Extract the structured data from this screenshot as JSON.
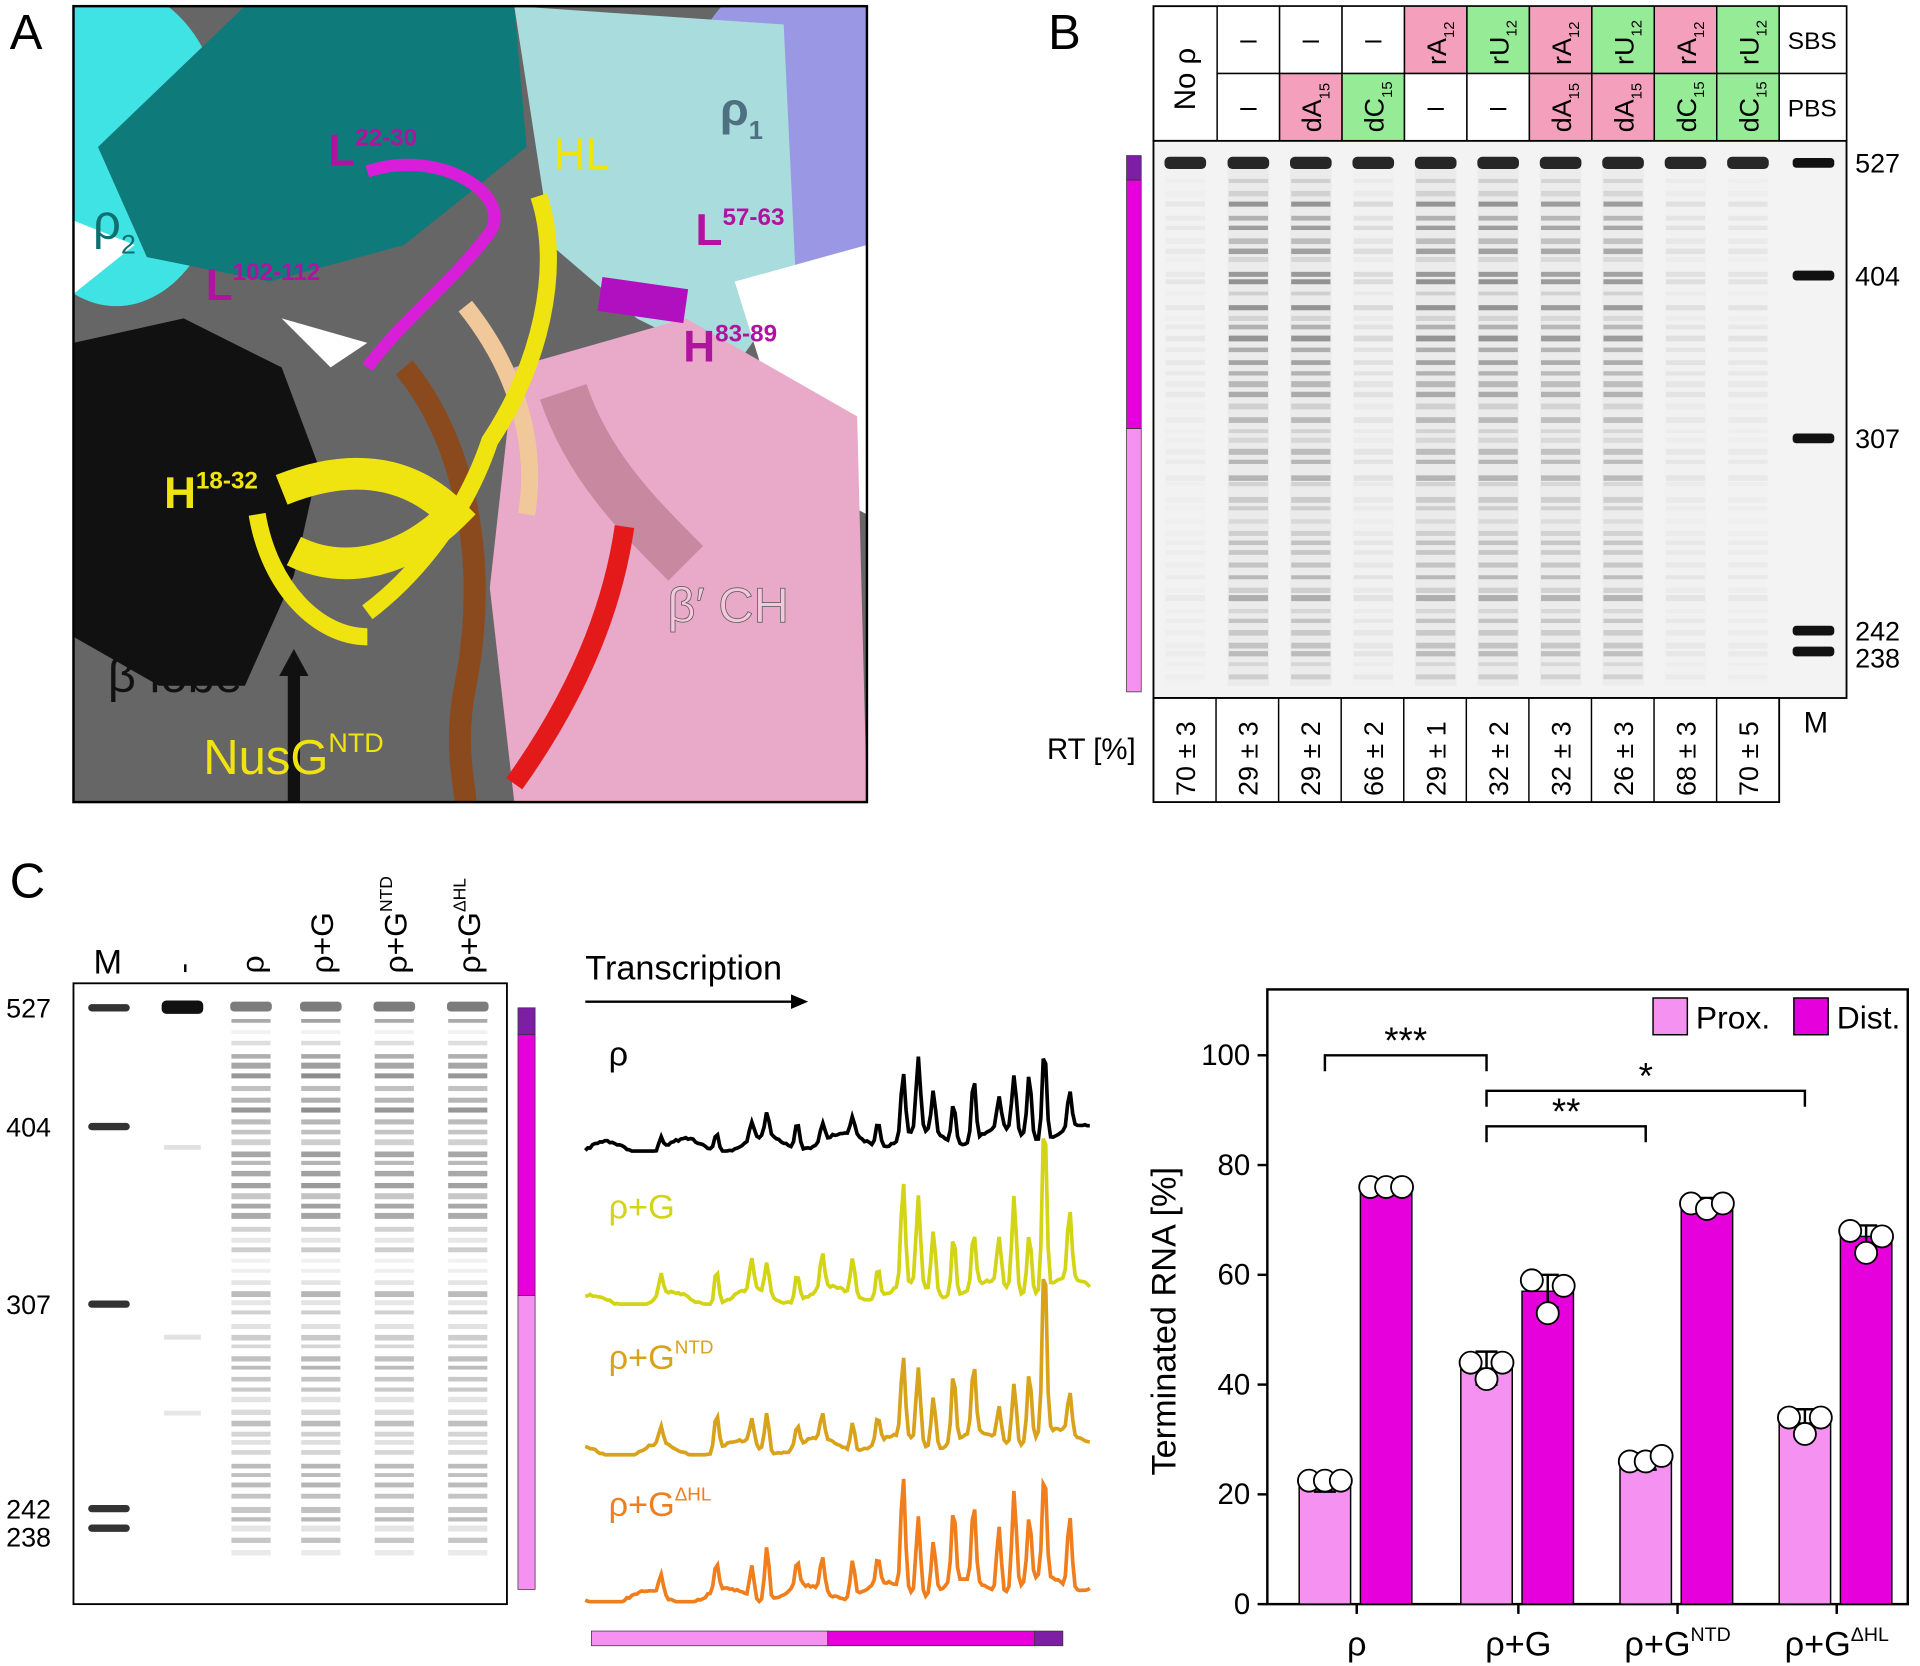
{
  "panel_labels": [
    "A",
    "B",
    "C"
  ],
  "panel_a": {
    "labels": [
      {
        "text": "ρ",
        "sub": "2"
      },
      {
        "text": "L",
        "sup": "22-30"
      },
      {
        "text": "HL"
      },
      {
        "text": "ρ",
        "sub": "1"
      },
      {
        "text": "L",
        "sup": "57-63"
      },
      {
        "text": "L",
        "sup": "102-112"
      },
      {
        "text": "H",
        "sup": "83-89"
      },
      {
        "text": "H",
        "sup": "18-32"
      },
      {
        "text": "β′ CH"
      },
      {
        "text": "β lobe"
      },
      {
        "text": "NusG",
        "sup": "NTD"
      }
    ]
  },
  "panel_b": {
    "first_column": "No ρ",
    "sbs": [
      "–",
      "–",
      "–",
      {
        "text": "rA",
        "sub": "12"
      },
      {
        "text": "rU",
        "sub": "12"
      },
      {
        "text": "rA",
        "sub": "12"
      },
      {
        "text": "rU",
        "sub": "12"
      },
      {
        "text": "rA",
        "sub": "12"
      },
      {
        "text": "rU",
        "sub": "12"
      }
    ],
    "pbs": [
      "–",
      {
        "text": "dA",
        "sub": "15"
      },
      {
        "text": "dC",
        "sub": "15"
      },
      "–",
      "–",
      {
        "text": "dA",
        "sub": "15"
      },
      {
        "text": "dA",
        "sub": "15"
      },
      {
        "text": "dC",
        "sub": "15"
      },
      {
        "text": "dC",
        "sub": "15"
      }
    ],
    "row_labels": [
      "SBS",
      "PBS"
    ],
    "rt_label": "RT [%]",
    "rt": [
      "70 ± 3",
      "29 ± 3",
      "29 ± 2",
      "66 ± 2",
      "29 ± 1",
      "32 ± 2",
      "32 ± 3",
      "26 ± 3",
      "68 ± 3",
      "70 ± 5"
    ],
    "marker_lane": "M",
    "marker_sizes": [
      "527",
      "404",
      "307",
      "242",
      "238"
    ]
  },
  "panel_c": {
    "lanes": [
      {
        "text": "M"
      },
      {
        "text": "-"
      },
      {
        "text": "ρ"
      },
      {
        "text": "ρ+G"
      },
      {
        "text": "ρ+G",
        "sup": "NTD"
      },
      {
        "text": "ρ+G",
        "sup": "ΔHL"
      }
    ],
    "marker_sizes": [
      "527",
      "404",
      "307",
      "242",
      "238"
    ],
    "trace_title": "Transcription",
    "traces": [
      {
        "label": {
          "text": "ρ"
        },
        "color": "#000000"
      },
      {
        "label": {
          "text": "ρ+G"
        },
        "color": "#d2d414"
      },
      {
        "label": {
          "text": "ρ+G",
          "sup": "NTD"
        },
        "color": "#d8a21a"
      },
      {
        "label": {
          "text": "ρ+G",
          "sup": "ΔHL"
        },
        "color": "#f07e1c"
      }
    ]
  },
  "chart_data": {
    "type": "bar",
    "categories": [
      "ρ",
      "ρ+G",
      "ρ+G",
      "ρ+G"
    ],
    "category_superscripts": [
      null,
      null,
      "NTD",
      "ΔHL"
    ],
    "ylabel": "Terminated RNA [%]",
    "ylim": [
      0,
      112
    ],
    "yticks": [
      0,
      20,
      40,
      60,
      80,
      100
    ],
    "legend": "top-right",
    "series": [
      {
        "name": "Prox.",
        "color": "#f591f0",
        "values": [
          22,
          43,
          26,
          33
        ],
        "errors": [
          1.5,
          3,
          1.5,
          2.5
        ],
        "points": [
          [
            22.5,
            22.5,
            22.5
          ],
          [
            44,
            41,
            44
          ],
          [
            26,
            26,
            27
          ],
          [
            34,
            31,
            34
          ]
        ]
      },
      {
        "name": "Dist.",
        "color": "#e600dc",
        "values": [
          76,
          57,
          73,
          67
        ],
        "errors": [
          1,
          3,
          1,
          2
        ],
        "points": [
          [
            76,
            76,
            76
          ],
          [
            59,
            53,
            58
          ],
          [
            73,
            72,
            73
          ],
          [
            68,
            64,
            67
          ]
        ]
      }
    ],
    "annotations": [
      {
        "from": 0,
        "to": 1,
        "label": "***"
      },
      {
        "from": 1,
        "to": 3,
        "label": "*"
      },
      {
        "from": 1,
        "to": 2,
        "label": "**"
      }
    ]
  }
}
